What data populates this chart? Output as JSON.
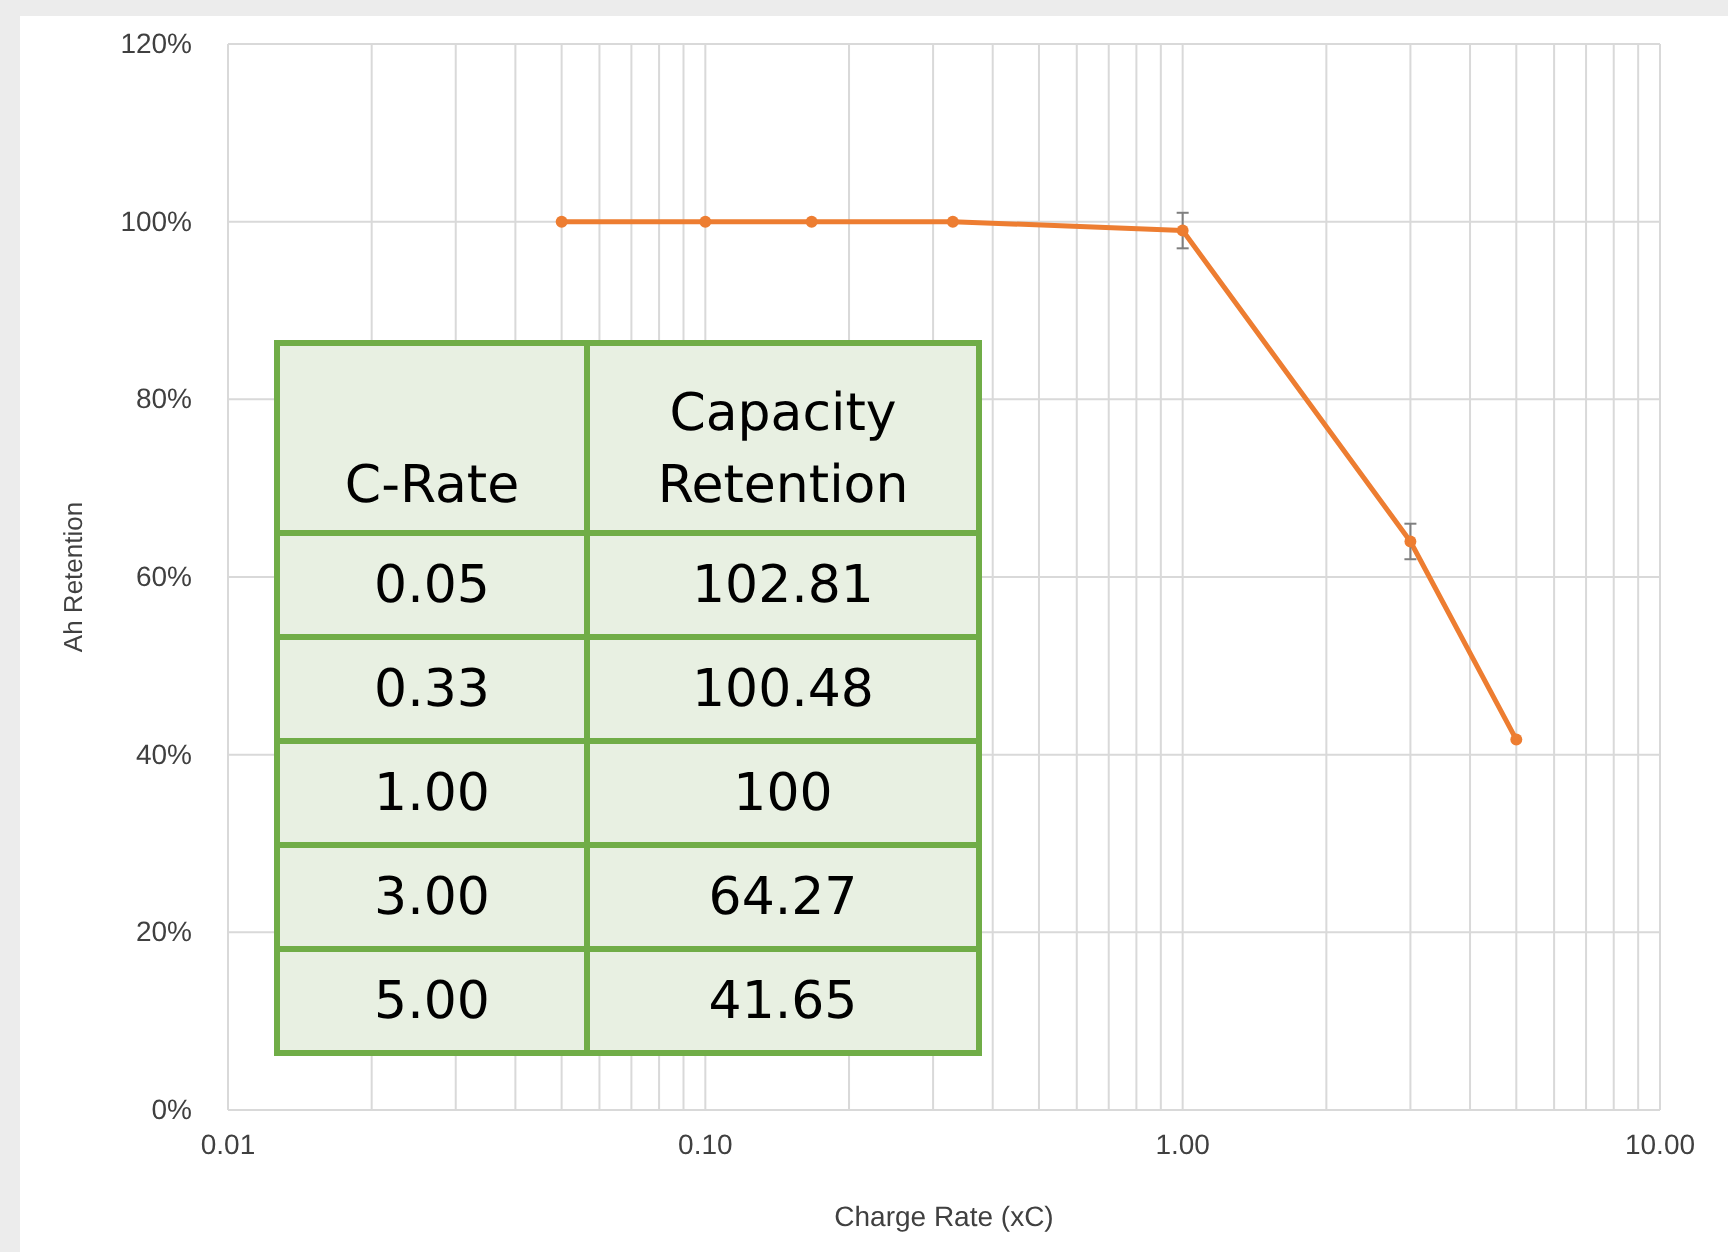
{
  "chart_data": [
    {
      "type": "line",
      "xlabel": "Charge Rate (xC)",
      "ylabel": "Ah Retention",
      "log": "x",
      "x": [
        0.05,
        0.1,
        0.167,
        0.33,
        1.0,
        3.0,
        5.0
      ],
      "series": [
        {
          "color": "#ed7d31",
          "values": [
            100,
            100,
            100,
            100,
            99,
            64,
            41.7
          ],
          "errors": [
            null,
            null,
            null,
            null,
            2,
            2,
            null
          ]
        }
      ],
      "xlim": [
        0.01,
        10
      ],
      "xticks": [
        {
          "value": 0.01,
          "label": "0.01"
        },
        {
          "value": 0.02,
          "label": null
        },
        {
          "value": 0.03,
          "label": null
        },
        {
          "value": 0.04,
          "label": null
        },
        {
          "value": 0.05,
          "label": null
        },
        {
          "value": 0.06,
          "label": null
        },
        {
          "value": 0.07,
          "label": null
        },
        {
          "value": 0.08,
          "label": null
        },
        {
          "value": 0.09,
          "label": null
        },
        {
          "value": 0.1,
          "label": "0.10"
        },
        {
          "value": 0.2,
          "label": null
        },
        {
          "value": 0.3,
          "label": null
        },
        {
          "value": 0.4,
          "label": null
        },
        {
          "value": 0.5,
          "label": null
        },
        {
          "value": 0.6,
          "label": null
        },
        {
          "value": 0.7,
          "label": null
        },
        {
          "value": 0.8,
          "label": null
        },
        {
          "value": 0.9,
          "label": null
        },
        {
          "value": 1,
          "label": "1.00"
        },
        {
          "value": 2,
          "label": null
        },
        {
          "value": 3,
          "label": null
        },
        {
          "value": 4,
          "label": null
        },
        {
          "value": 5,
          "label": null
        },
        {
          "value": 6,
          "label": null
        },
        {
          "value": 7,
          "label": null
        },
        {
          "value": 8,
          "label": null
        },
        {
          "value": 9,
          "label": null
        },
        {
          "value": 10,
          "label": "10.00"
        }
      ],
      "ylim": [
        0,
        120
      ],
      "yticks": [
        {
          "value": 0,
          "label": "0%"
        },
        {
          "value": 20,
          "label": "20%"
        },
        {
          "value": 40,
          "label": "40%"
        },
        {
          "value": 60,
          "label": "60%"
        },
        {
          "value": 80,
          "label": "80%"
        },
        {
          "value": 100,
          "label": "100%"
        },
        {
          "value": 120,
          "label": "120%"
        }
      ],
      "grid": true,
      "marker": "circle",
      "line_style": "solid"
    },
    {
      "type": "other",
      "annotations": [
        "C-Rate",
        "Capacity Retention",
        "0.05",
        "102.81",
        "0.33",
        "100.48",
        "1.00",
        "100",
        "3.00",
        "64.27",
        "5.00",
        "41.65"
      ]
    }
  ]
}
